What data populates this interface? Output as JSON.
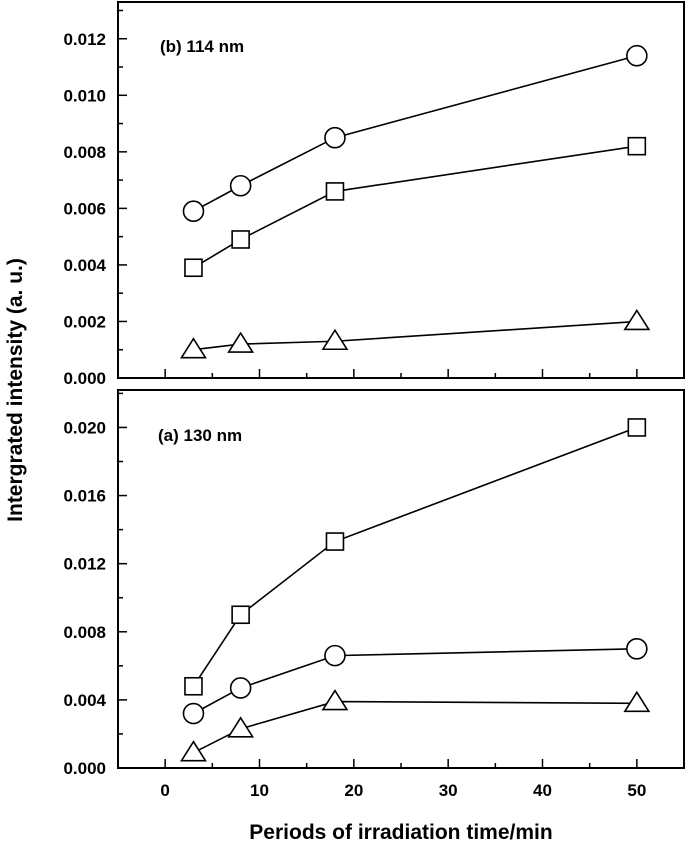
{
  "chart_data": [
    {
      "type": "line",
      "panel_label": "(b) 114 nm",
      "x": [
        3,
        8,
        18,
        50
      ],
      "xlim": [
        -5,
        55
      ],
      "ylim": [
        0.0,
        0.0133
      ],
      "yticks": [
        "0.000",
        "0.002",
        "0.004",
        "0.006",
        "0.008",
        "0.010",
        "0.012"
      ],
      "ytick_values": [
        0.0,
        0.002,
        0.004,
        0.006,
        0.008,
        0.01,
        0.012
      ],
      "series": [
        {
          "marker": "circle",
          "values": [
            0.0059,
            0.0068,
            0.0085,
            0.0114
          ]
        },
        {
          "marker": "square",
          "values": [
            0.0039,
            0.0049,
            0.0066,
            0.0082
          ]
        },
        {
          "marker": "triangle",
          "values": [
            0.001,
            0.0012,
            0.0013,
            0.002
          ]
        }
      ]
    },
    {
      "type": "line",
      "panel_label": "(a) 130 nm",
      "x": [
        3,
        8,
        18,
        50
      ],
      "xlim": [
        -5,
        55
      ],
      "ylim": [
        0.0,
        0.0222
      ],
      "yticks": [
        "0.000",
        "0.004",
        "0.008",
        "0.012",
        "0.016",
        "0.020"
      ],
      "ytick_values": [
        0.0,
        0.004,
        0.008,
        0.012,
        0.016,
        0.02
      ],
      "series": [
        {
          "marker": "square",
          "values": [
            0.0048,
            0.009,
            0.0133,
            0.02
          ]
        },
        {
          "marker": "circle",
          "values": [
            0.0032,
            0.0047,
            0.0066,
            0.007
          ]
        },
        {
          "marker": "triangle",
          "values": [
            0.0009,
            0.0023,
            0.0039,
            0.0038
          ]
        }
      ]
    }
  ],
  "axes": {
    "xticks": [
      "0",
      "10",
      "20",
      "30",
      "40",
      "50"
    ],
    "xtick_values": [
      0,
      10,
      20,
      30,
      40,
      50
    ],
    "xlabel": "Periods of irradiation time/min",
    "ylabel": "Intergrated intensity (a. u.)"
  }
}
